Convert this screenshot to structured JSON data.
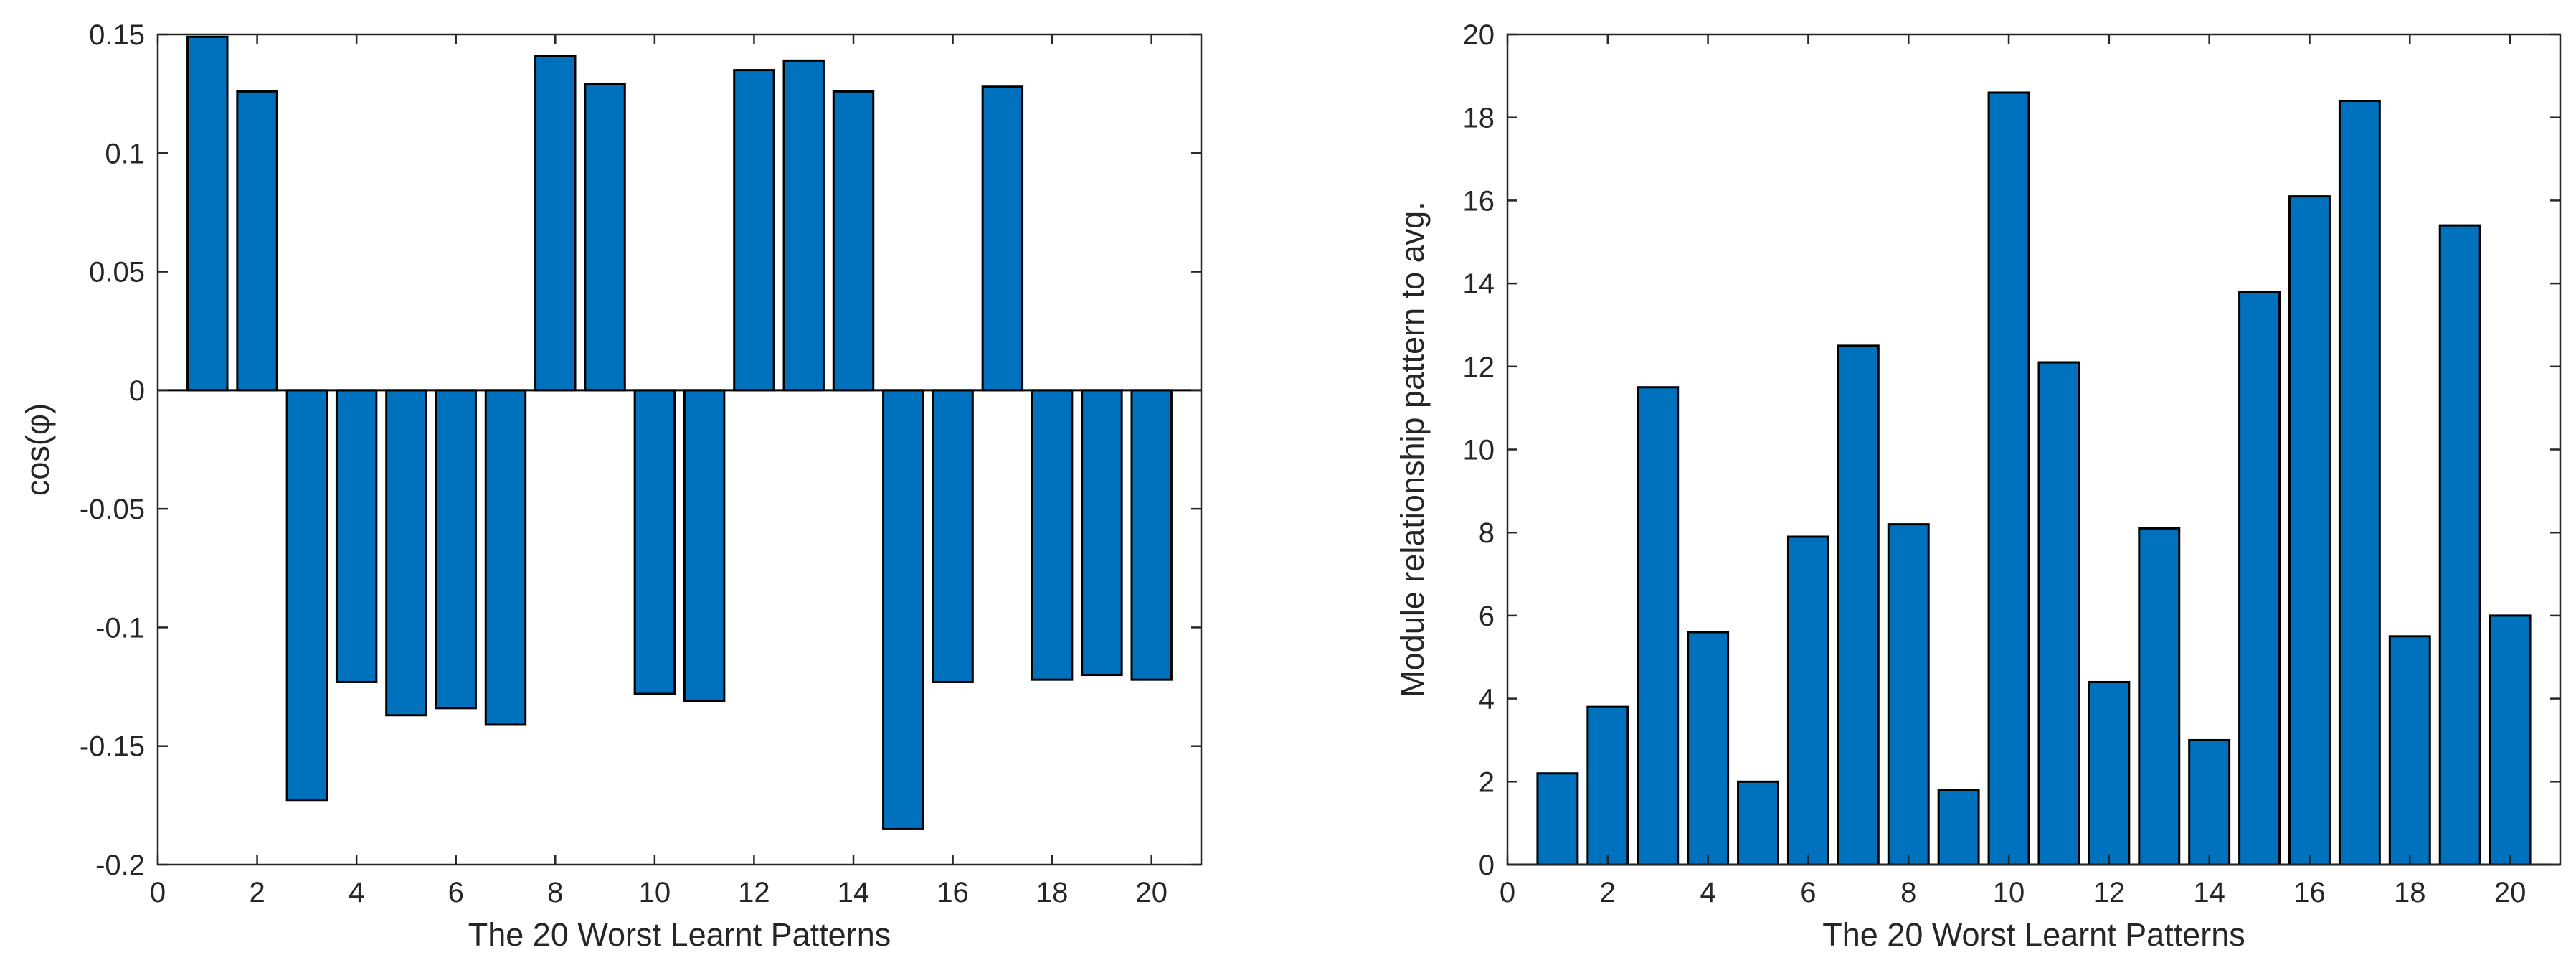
{
  "chart_data": [
    {
      "type": "bar",
      "title": "",
      "xlabel": "The 20 Worst Learnt Patterns",
      "ylabel": "cos(φ)",
      "categories": [
        1,
        2,
        3,
        4,
        5,
        6,
        7,
        8,
        9,
        10,
        11,
        12,
        13,
        14,
        15,
        16,
        17,
        18,
        19,
        20
      ],
      "values": [
        0.149,
        0.126,
        -0.173,
        -0.123,
        -0.137,
        -0.134,
        -0.141,
        0.141,
        0.129,
        -0.128,
        -0.131,
        0.135,
        0.139,
        0.126,
        -0.185,
        -0.123,
        0.128,
        -0.122,
        -0.12,
        -0.122
      ],
      "xlim": [
        0,
        21
      ],
      "ylim": [
        -0.2,
        0.15
      ],
      "xticks": [
        0,
        2,
        4,
        6,
        8,
        10,
        12,
        14,
        16,
        18,
        20
      ],
      "xtick_labels": [
        "0",
        "2",
        "4",
        "6",
        "8",
        "10",
        "12",
        "14",
        "16",
        "18",
        "20"
      ],
      "yticks": [
        -0.2,
        -0.15,
        -0.1,
        -0.05,
        0,
        0.05,
        0.1,
        0.15
      ],
      "ytick_labels": [
        "-0.2",
        "-0.15",
        "-0.1",
        "-0.05",
        "0",
        "0.05",
        "0.1",
        "0.15"
      ],
      "bar_color": "#0072BD",
      "grid": false
    },
    {
      "type": "bar",
      "title": "",
      "xlabel": "The 20 Worst Learnt Patterns",
      "ylabel": "Module relationship pattern to avg.",
      "categories": [
        1,
        2,
        3,
        4,
        5,
        6,
        7,
        8,
        9,
        10,
        11,
        12,
        13,
        14,
        15,
        16,
        17,
        18,
        19,
        20
      ],
      "values": [
        2.2,
        3.8,
        11.5,
        5.6,
        2.0,
        7.9,
        12.5,
        8.2,
        1.8,
        18.6,
        12.1,
        4.4,
        8.1,
        3.0,
        13.8,
        16.1,
        18.4,
        5.5,
        15.4,
        6.0
      ],
      "xlim": [
        0,
        21
      ],
      "ylim": [
        0,
        20
      ],
      "xticks": [
        0,
        2,
        4,
        6,
        8,
        10,
        12,
        14,
        16,
        18,
        20
      ],
      "xtick_labels": [
        "0",
        "2",
        "4",
        "6",
        "8",
        "10",
        "12",
        "14",
        "16",
        "18",
        "20"
      ],
      "yticks": [
        0,
        2,
        4,
        6,
        8,
        10,
        12,
        14,
        16,
        18,
        20
      ],
      "ytick_labels": [
        "0",
        "2",
        "4",
        "6",
        "8",
        "10",
        "12",
        "14",
        "16",
        "18",
        "20"
      ],
      "bar_color": "#0072BD",
      "grid": false
    }
  ]
}
